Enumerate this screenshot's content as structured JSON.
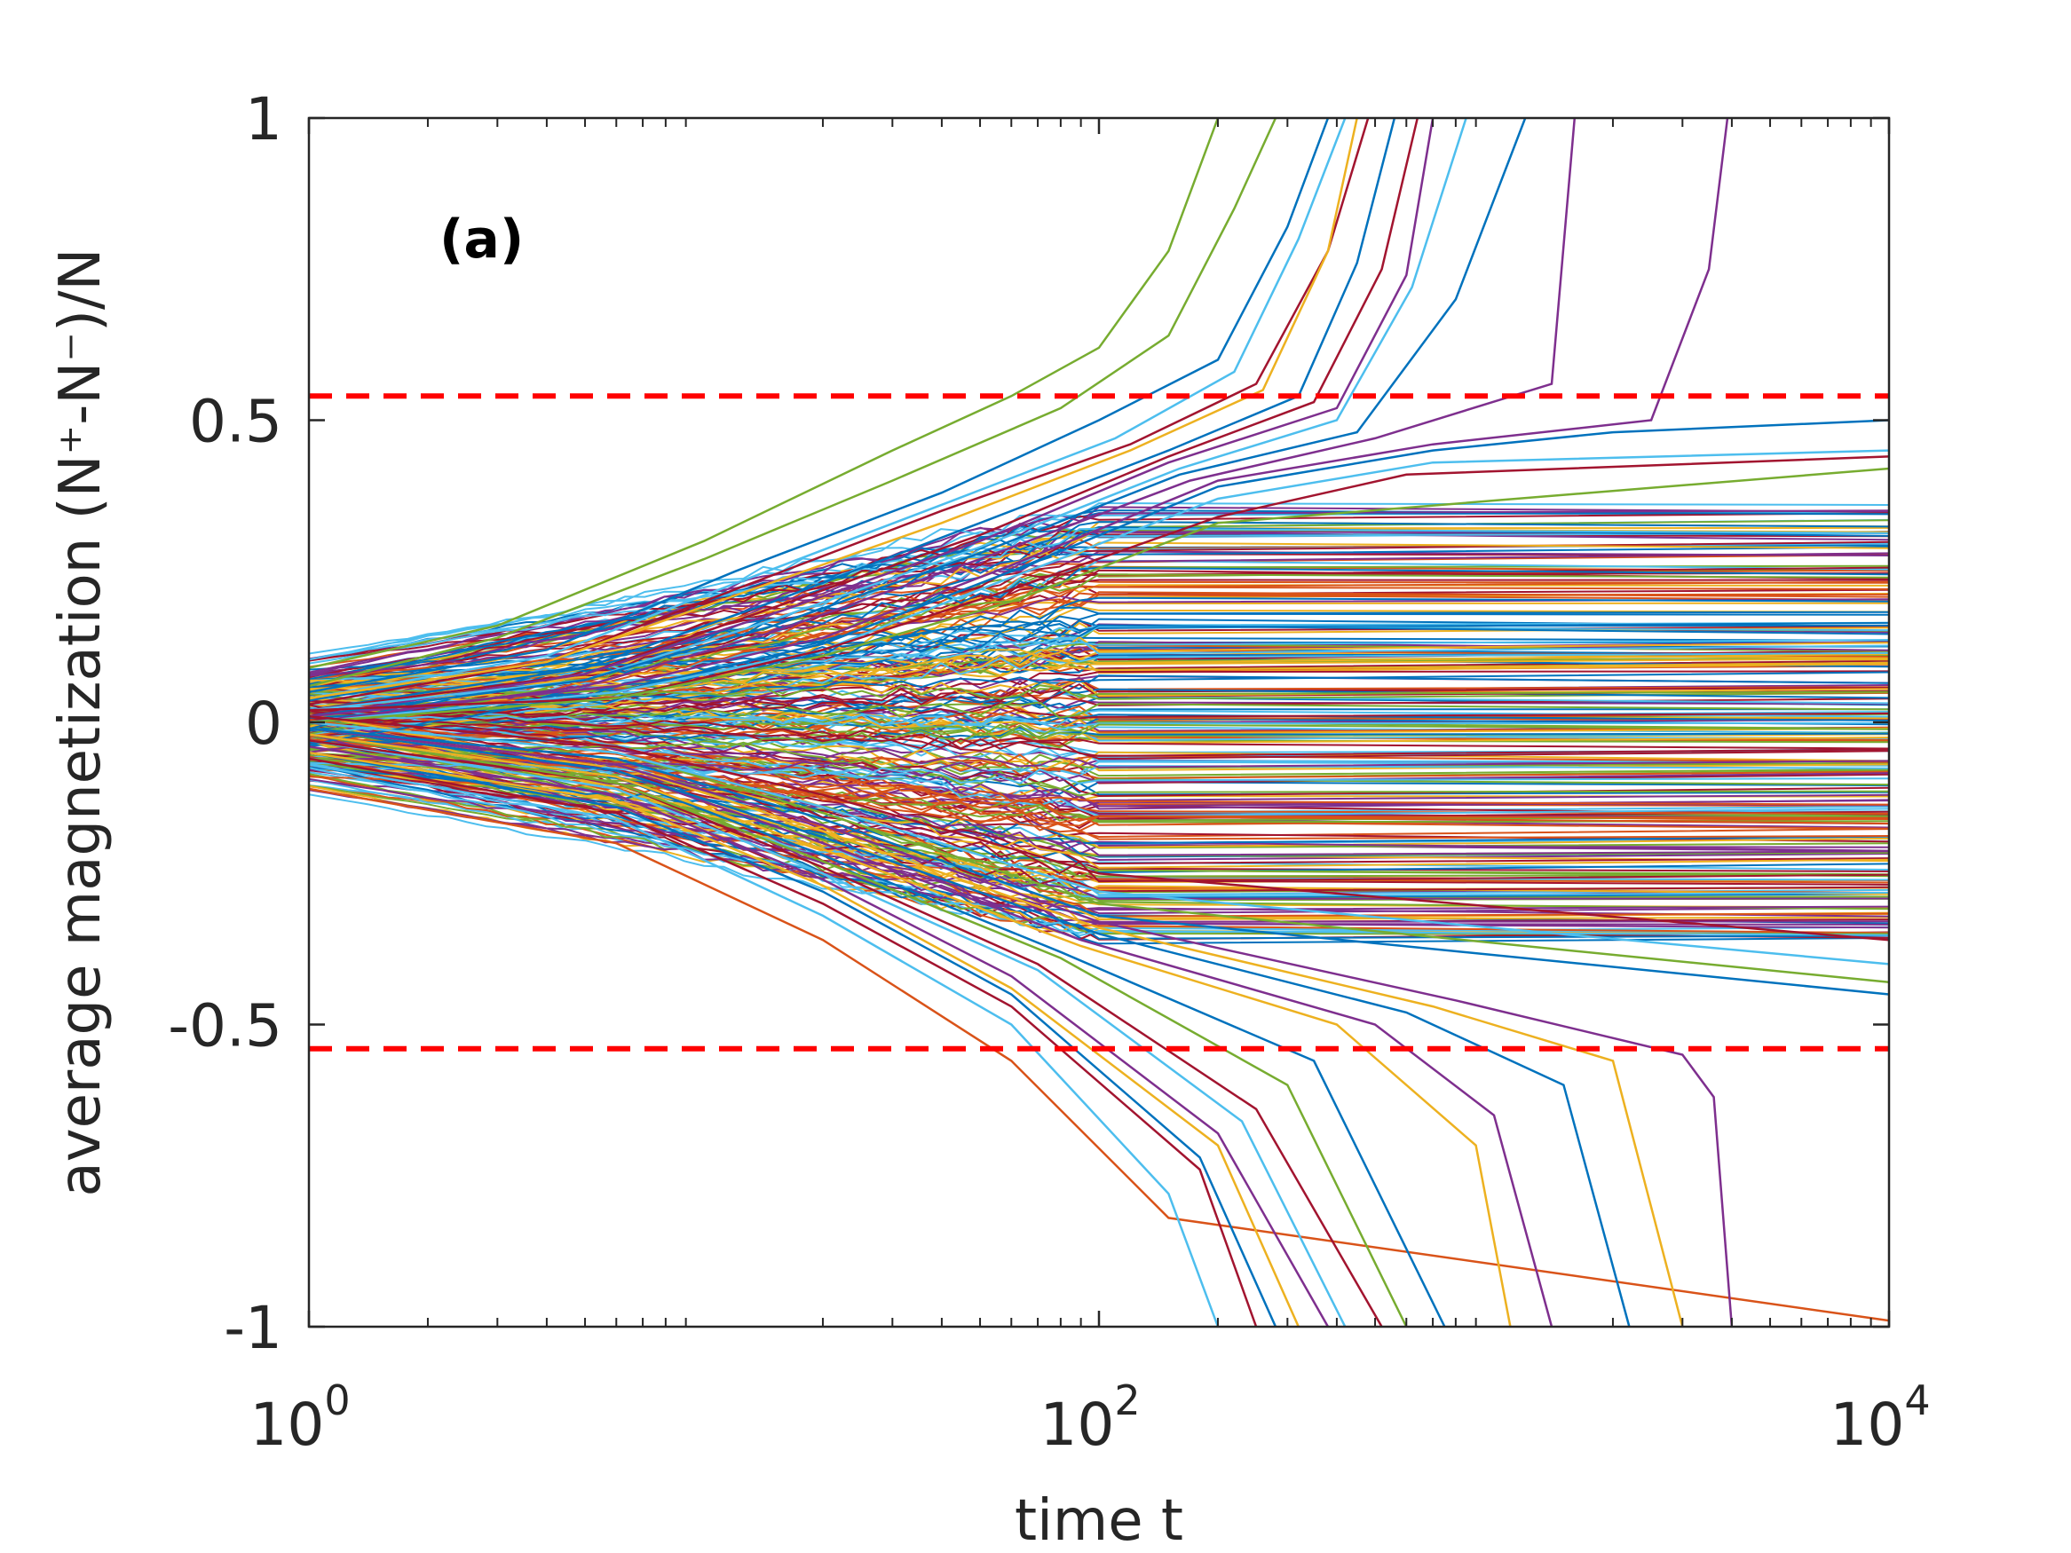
{
  "chart_data": {
    "type": "line",
    "panel_label": "(a)",
    "xlabel": "time t",
    "ylabel": "average magnetization (N⁺-N⁻)/N",
    "x_scale": "log",
    "xlim": [
      1,
      10000
    ],
    "ylim": [
      -1,
      1
    ],
    "x_ticks": [
      {
        "value": 1,
        "base": "10",
        "exp": "0"
      },
      {
        "value": 100,
        "base": "10",
        "exp": "2"
      },
      {
        "value": 10000,
        "base": "10",
        "exp": "4"
      }
    ],
    "y_ticks": [
      {
        "value": 1,
        "label": "1"
      },
      {
        "value": 0.5,
        "label": "0.5"
      },
      {
        "value": 0,
        "label": "0"
      },
      {
        "value": -0.5,
        "label": "-0.5"
      },
      {
        "value": -1,
        "label": "-1"
      }
    ],
    "reference_lines": [
      {
        "y": 0.54,
        "style": "dashed",
        "color": "#ff0000"
      },
      {
        "y": -0.54,
        "style": "dashed",
        "color": "#ff0000"
      }
    ],
    "series_colors": [
      "#0072bd",
      "#d95319",
      "#edb120",
      "#7e2f8e",
      "#77ac30",
      "#4dbeee",
      "#a2142f"
    ],
    "series": [
      {
        "color": "#77ac30",
        "x": [
          1,
          3,
          10,
          30,
          60,
          100,
          150,
          200
        ],
        "y": [
          0.09,
          0.16,
          0.3,
          0.45,
          0.54,
          0.62,
          0.78,
          1.0
        ]
      },
      {
        "color": "#77ac30",
        "x": [
          1,
          3,
          10,
          30,
          80,
          150,
          220,
          280
        ],
        "y": [
          0.06,
          0.14,
          0.27,
          0.4,
          0.52,
          0.64,
          0.85,
          1.0
        ]
      },
      {
        "color": "#0072bd",
        "x": [
          1,
          4,
          12,
          40,
          100,
          200,
          300,
          380
        ],
        "y": [
          0.05,
          0.12,
          0.25,
          0.38,
          0.5,
          0.6,
          0.82,
          1.0
        ]
      },
      {
        "color": "#4dbeee",
        "x": [
          1,
          4,
          12,
          40,
          110,
          220,
          320,
          420
        ],
        "y": [
          0.04,
          0.11,
          0.23,
          0.36,
          0.47,
          0.58,
          0.8,
          1.0
        ]
      },
      {
        "color": "#a2142f",
        "x": [
          1,
          4,
          12,
          40,
          120,
          250,
          380,
          480
        ],
        "y": [
          0.03,
          0.1,
          0.22,
          0.35,
          0.46,
          0.56,
          0.78,
          1.0
        ]
      },
      {
        "color": "#edb120",
        "x": [
          1,
          4,
          12,
          40,
          120,
          260,
          380,
          450
        ],
        "y": [
          0.04,
          0.1,
          0.21,
          0.33,
          0.45,
          0.55,
          0.78,
          1.0
        ]
      },
      {
        "color": "#0072bd",
        "x": [
          1,
          5,
          15,
          50,
          150,
          320,
          450,
          560
        ],
        "y": [
          0.02,
          0.09,
          0.2,
          0.33,
          0.45,
          0.54,
          0.76,
          1.0
        ]
      },
      {
        "color": "#a2142f",
        "x": [
          1,
          5,
          15,
          50,
          150,
          350,
          520,
          640
        ],
        "y": [
          0.02,
          0.08,
          0.19,
          0.31,
          0.44,
          0.53,
          0.75,
          1.0
        ]
      },
      {
        "color": "#7e2f8e",
        "x": [
          1,
          5,
          15,
          50,
          150,
          400,
          600,
          700
        ],
        "y": [
          0.01,
          0.08,
          0.18,
          0.3,
          0.43,
          0.52,
          0.74,
          1.0
        ]
      },
      {
        "color": "#4dbeee",
        "x": [
          1,
          5,
          15,
          50,
          160,
          400,
          620,
          850
        ],
        "y": [
          0.02,
          0.07,
          0.17,
          0.29,
          0.42,
          0.5,
          0.72,
          1.0
        ]
      },
      {
        "color": "#0072bd",
        "x": [
          1,
          5,
          15,
          50,
          160,
          450,
          800,
          1200
        ],
        "y": [
          0.01,
          0.07,
          0.16,
          0.28,
          0.41,
          0.48,
          0.7,
          1.0
        ]
      },
      {
        "color": "#7e2f8e",
        "x": [
          1,
          5,
          15,
          50,
          170,
          500,
          1400,
          1600
        ],
        "y": [
          0.0,
          0.06,
          0.15,
          0.27,
          0.4,
          0.47,
          0.56,
          1.0
        ]
      },
      {
        "color": "#7e2f8e",
        "x": [
          1,
          6,
          20,
          60,
          200,
          700,
          2500,
          3500,
          3900
        ],
        "y": [
          0.01,
          0.06,
          0.14,
          0.26,
          0.4,
          0.46,
          0.5,
          0.75,
          1.0
        ]
      },
      {
        "color": "#0072bd",
        "x": [
          1,
          6,
          20,
          60,
          200,
          700,
          2000,
          10000
        ],
        "y": [
          0.0,
          0.05,
          0.13,
          0.25,
          0.39,
          0.45,
          0.48,
          0.5
        ]
      },
      {
        "color": "#4dbeee",
        "x": [
          1,
          6,
          20,
          60,
          200,
          700,
          10000
        ],
        "y": [
          0.0,
          0.05,
          0.12,
          0.24,
          0.37,
          0.43,
          0.45
        ]
      },
      {
        "color": "#a2142f",
        "x": [
          1,
          6,
          20,
          60,
          200,
          600,
          10000
        ],
        "y": [
          0.02,
          0.04,
          0.12,
          0.22,
          0.34,
          0.41,
          0.44
        ]
      },
      {
        "color": "#77ac30",
        "x": [
          1,
          6,
          20,
          60,
          200,
          10000
        ],
        "y": [
          0.0,
          0.04,
          0.11,
          0.2,
          0.33,
          0.42
        ]
      },
      {
        "color": "#d95319",
        "x": [
          1,
          6,
          20,
          60,
          150,
          10000
        ],
        "y": [
          -0.11,
          -0.2,
          -0.36,
          -0.56,
          -0.82,
          -0.99
        ]
      },
      {
        "color": "#4dbeee",
        "x": [
          1,
          6,
          20,
          60,
          150,
          200
        ],
        "y": [
          -0.07,
          -0.16,
          -0.32,
          -0.5,
          -0.78,
          -1.0
        ]
      },
      {
        "color": "#a2142f",
        "x": [
          1,
          6,
          20,
          60,
          180,
          250
        ],
        "y": [
          -0.06,
          -0.15,
          -0.3,
          -0.47,
          -0.74,
          -1.0
        ]
      },
      {
        "color": "#0072bd",
        "x": [
          1,
          6,
          20,
          60,
          180,
          280
        ],
        "y": [
          -0.05,
          -0.14,
          -0.28,
          -0.45,
          -0.72,
          -1.0
        ]
      },
      {
        "color": "#edb120",
        "x": [
          1,
          6,
          20,
          60,
          200,
          320
        ],
        "y": [
          -0.05,
          -0.13,
          -0.27,
          -0.44,
          -0.7,
          -1.0
        ]
      },
      {
        "color": "#7e2f8e",
        "x": [
          1,
          6,
          20,
          60,
          200,
          380
        ],
        "y": [
          -0.04,
          -0.12,
          -0.26,
          -0.42,
          -0.68,
          -1.0
        ]
      },
      {
        "color": "#4dbeee",
        "x": [
          1,
          6,
          20,
          70,
          230,
          420
        ],
        "y": [
          -0.03,
          -0.11,
          -0.25,
          -0.41,
          -0.66,
          -1.0
        ]
      },
      {
        "color": "#a2142f",
        "x": [
          1,
          6,
          20,
          70,
          250,
          520
        ],
        "y": [
          -0.03,
          -0.1,
          -0.24,
          -0.4,
          -0.64,
          -1.0
        ]
      },
      {
        "color": "#77ac30",
        "x": [
          1,
          6,
          20,
          80,
          300,
          600
        ],
        "y": [
          -0.02,
          -0.1,
          -0.23,
          -0.39,
          -0.6,
          -1.0
        ]
      },
      {
        "color": "#0072bd",
        "x": [
          1,
          6,
          20,
          80,
          350,
          750
        ],
        "y": [
          -0.02,
          -0.09,
          -0.22,
          -0.38,
          -0.56,
          -1.0
        ]
      },
      {
        "color": "#edb120",
        "x": [
          1,
          6,
          20,
          90,
          400,
          900,
          1100
        ],
        "y": [
          -0.02,
          -0.09,
          -0.21,
          -0.37,
          -0.5,
          -0.7,
          -1.0
        ]
      },
      {
        "color": "#7e2f8e",
        "x": [
          1,
          6,
          20,
          90,
          500,
          1000,
          1400
        ],
        "y": [
          -0.01,
          -0.08,
          -0.2,
          -0.36,
          -0.5,
          -0.65,
          -1.0
        ]
      },
      {
        "color": "#0072bd",
        "x": [
          1,
          6,
          20,
          100,
          600,
          1500,
          2200
        ],
        "y": [
          -0.01,
          -0.08,
          -0.19,
          -0.35,
          -0.48,
          -0.6,
          -1.0
        ]
      },
      {
        "color": "#edb120",
        "x": [
          1,
          6,
          20,
          100,
          700,
          2000,
          3000
        ],
        "y": [
          -0.01,
          -0.07,
          -0.18,
          -0.34,
          -0.47,
          -0.56,
          -1.0
        ]
      },
      {
        "color": "#7e2f8e",
        "x": [
          1,
          6,
          20,
          100,
          800,
          3000,
          3600,
          4000
        ],
        "y": [
          -0.01,
          -0.07,
          -0.17,
          -0.33,
          -0.46,
          -0.55,
          -0.62,
          -1.0
        ]
      },
      {
        "color": "#0072bd",
        "x": [
          1,
          6,
          20,
          100,
          10000
        ],
        "y": [
          -0.01,
          -0.06,
          -0.16,
          -0.32,
          -0.45
        ]
      },
      {
        "color": "#77ac30",
        "x": [
          1,
          6,
          20,
          100,
          10000
        ],
        "y": [
          0.0,
          -0.05,
          -0.15,
          -0.3,
          -0.43
        ]
      },
      {
        "color": "#4dbeee",
        "x": [
          1,
          6,
          20,
          100,
          10000
        ],
        "y": [
          0.0,
          -0.05,
          -0.14,
          -0.28,
          -0.4
        ]
      },
      {
        "color": "#a2142f",
        "x": [
          1,
          6,
          20,
          100,
          10000
        ],
        "y": [
          0.01,
          -0.04,
          -0.12,
          -0.25,
          -0.36
        ]
      }
    ]
  }
}
